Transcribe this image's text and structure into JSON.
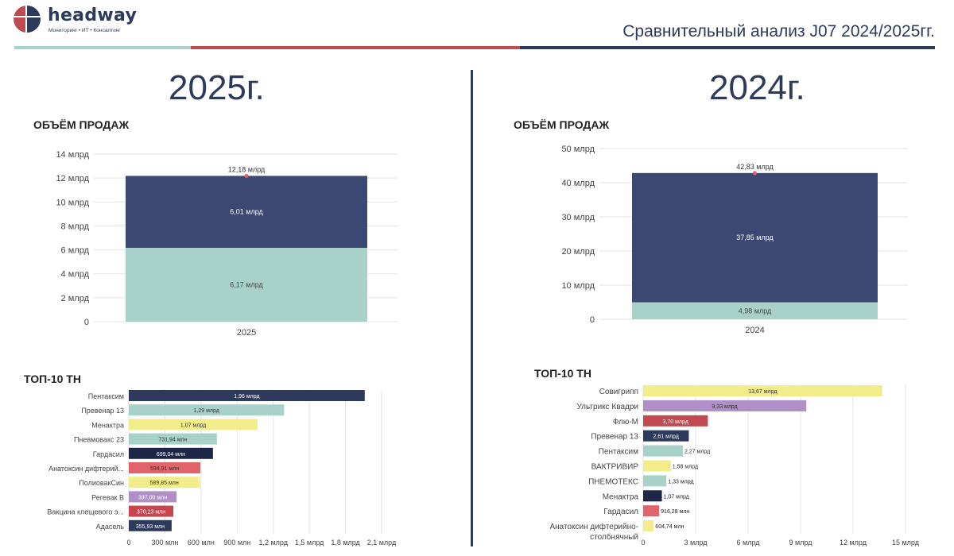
{
  "header": {
    "logo_name": "headway",
    "logo_tagline": "Мониторинг • ИТ • Консалтинг",
    "title": "Сравнительный анализ J07 2024/2025гг.",
    "colors": {
      "navy": "#2e3a5c",
      "teal": "#a7d1c9",
      "red": "#c04a4f"
    }
  },
  "left": {
    "year": "2025г.",
    "volume_title": "ОБЪЁМ ПРОДАЖ",
    "top_title": "ТОП-10 ТН"
  },
  "right": {
    "year": "2024г.",
    "volume_title": "ОБЪЁМ ПРОДАЖ",
    "top_title": "ТОП-10 ТН"
  },
  "chart_data": [
    {
      "type": "bar",
      "stacked": true,
      "categories": [
        "2025"
      ],
      "series": [
        {
          "values": [
            6.17
          ],
          "label": "6,17 млрд",
          "color": "#a7d1c9"
        },
        {
          "values": [
            6.01
          ],
          "label": "6,01 млрд",
          "color": "#3b4872"
        }
      ],
      "total": {
        "value": 12.18,
        "label": "12,18 млрд"
      },
      "ylim": [
        0,
        14
      ],
      "yticks": [
        "0",
        "2 млрд",
        "4 млрд",
        "6 млрд",
        "8 млрд",
        "10 млрд",
        "12 млрд",
        "14 млрд"
      ],
      "grid": true
    },
    {
      "type": "bar",
      "stacked": true,
      "categories": [
        "2024"
      ],
      "series": [
        {
          "values": [
            4.98
          ],
          "label": "4,98 млрд",
          "color": "#a7d1c9"
        },
        {
          "values": [
            37.85
          ],
          "label": "37,85 млрд",
          "color": "#3b4872"
        }
      ],
      "total": {
        "value": 42.83,
        "label": "42,83 млрд"
      },
      "ylim": [
        0,
        50
      ],
      "yticks": [
        "0",
        "10 млрд",
        "20 млрд",
        "30 млрд",
        "40 млрд",
        "50 млрд"
      ],
      "grid": true
    },
    {
      "type": "bar",
      "orientation": "horizontal",
      "categories": [
        "Пентаксим",
        "Превенар 13",
        "Менактра",
        "Пневмовакс 23",
        "Гардасил",
        "Анатоксин дифтерий...",
        "ПолиовакСин",
        "Регевак В",
        "Вакцина клещевого э...",
        "Адасель"
      ],
      "values": [
        1.96,
        1.29,
        1.07,
        0.73194,
        0.69904,
        0.59491,
        0.58985,
        0.397,
        0.37023,
        0.35593
      ],
      "labels": [
        "1,96 млрд",
        "1,29 млрд",
        "1,07 млрд",
        "731,94 млн",
        "699,04 млн",
        "594,91 млн",
        "589,85 млн",
        "397,00 млн",
        "370,23 млн",
        "355,93 млн"
      ],
      "colors": [
        "#2e3a5c",
        "#a7d1c9",
        "#f3ec8a",
        "#a7d1c9",
        "#1e2647",
        "#e0646a",
        "#f3ec8a",
        "#b08fc7",
        "#c9454d",
        "#2e3a5c"
      ],
      "label_colors": [
        "#ffffff",
        "#333333",
        "#333333",
        "#333333",
        "#ffffff",
        "#333333",
        "#333333",
        "#ffffff",
        "#ffffff",
        "#ffffff"
      ],
      "xlim": [
        0,
        2.1
      ],
      "xticks": [
        "0",
        "300 млн",
        "600 млн",
        "900 млн",
        "1,2 млрд",
        "1,5 млрд",
        "1,8 млрд",
        "2,1 млрд"
      ],
      "grid": true
    },
    {
      "type": "bar",
      "orientation": "horizontal",
      "categories": [
        "Совигрипп",
        "Ультрикс Квадри",
        "Флю-М",
        "Превенар 13",
        "Пентаксим",
        "ВАКТРИВИР",
        "ПНЕМОТЕКС",
        "Менактра",
        "Гардасил",
        "Анатоксин дифтерийно-столбнячный"
      ],
      "category_lines": [
        [
          "Совигрипп"
        ],
        [
          "Ультрикс Квадри"
        ],
        [
          "Флю-М"
        ],
        [
          "Превенар 13"
        ],
        [
          "Пентаксим"
        ],
        [
          "ВАКТРИВИР"
        ],
        [
          "ПНЕМОТЕКС"
        ],
        [
          "Менактра"
        ],
        [
          "Гардасил"
        ],
        [
          "Анатоксин дифтерийно-",
          "столбнячный"
        ]
      ],
      "values": [
        13.67,
        9.33,
        3.7,
        2.61,
        2.27,
        1.58,
        1.33,
        1.07,
        0.91628,
        0.60474
      ],
      "labels": [
        "13,67 млрд",
        "9,33 млрд",
        "3,70 млрд",
        "2,61 млрд",
        "2,27 млрд",
        "1,58 млрд",
        "1,33 млрд",
        "1,07 млрд",
        "916,28 млн",
        "604,74 млн"
      ],
      "colors": [
        "#f3ec8a",
        "#b08fc7",
        "#c04a4f",
        "#2e3a5c",
        "#a7d1c9",
        "#f3ec8a",
        "#a7d1c9",
        "#1e2647",
        "#e0646a",
        "#f3ec8a"
      ],
      "label_colors": [
        "#333333",
        "#333333",
        "#ffffff",
        "#ffffff",
        "#333333",
        "#333333",
        "#222222",
        "#222222",
        "#222222",
        "#222222"
      ],
      "xlim": [
        0,
        15
      ],
      "xticks": [
        "0",
        "3 млрд",
        "6 млрд",
        "9 млрд",
        "12 млрд",
        "15 млрд"
      ],
      "grid": true
    }
  ]
}
